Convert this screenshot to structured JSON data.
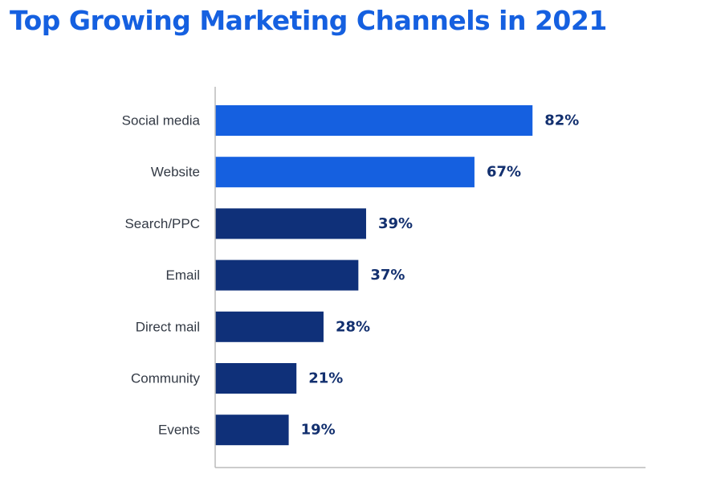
{
  "chart_data": {
    "type": "bar",
    "orientation": "horizontal",
    "title": "Top Growing Marketing Channels in 2021",
    "categories": [
      "Social media",
      "Website",
      "Search/PPC",
      "Email",
      "Direct mail",
      "Community",
      "Events"
    ],
    "values": [
      82,
      67,
      39,
      37,
      28,
      21,
      19
    ],
    "value_labels": [
      "82%",
      "67%",
      "39%",
      "37%",
      "28%",
      "21%",
      "19%"
    ],
    "unit": "%",
    "xlim": [
      0,
      100
    ],
    "grid": false,
    "legend": "none",
    "highlighted_categories": [
      "Social media",
      "Website"
    ]
  },
  "colors": {
    "title": "#1560e0",
    "highlight_bar": "#1560e0",
    "standard_bar": "#0f3079",
    "value_label": "#13306f",
    "axis": "#bcbcbc"
  }
}
